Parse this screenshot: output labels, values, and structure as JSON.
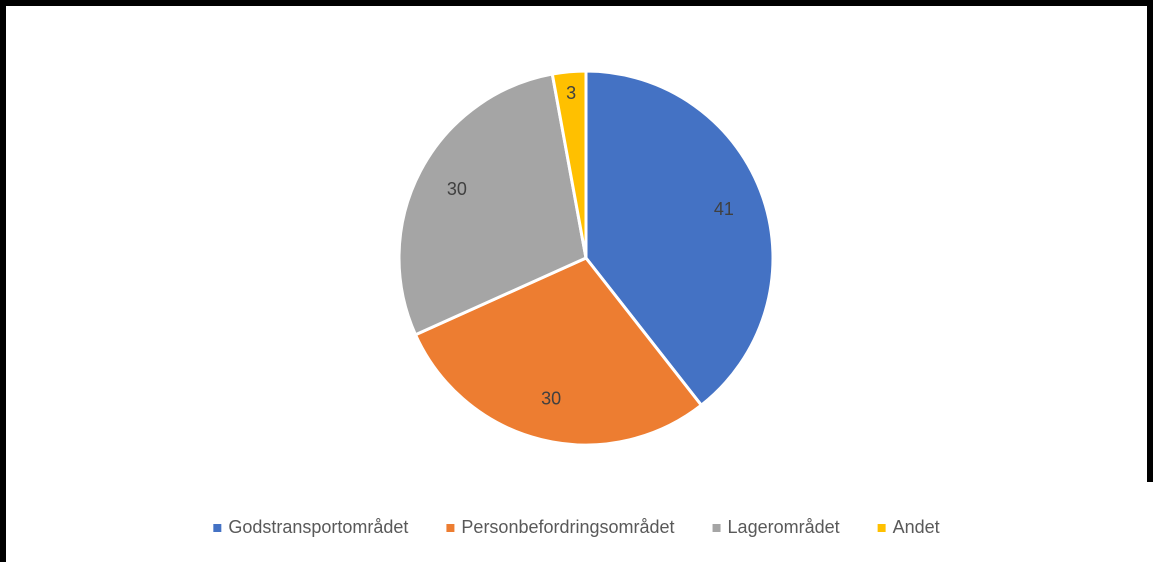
{
  "chart_data": {
    "type": "pie",
    "categories": [
      "Godstransportområdet",
      "Personbefordringsområdet",
      "Lagerområdet",
      "Andet"
    ],
    "values": [
      41,
      30,
      30,
      3
    ],
    "colors": [
      "#4472c4",
      "#ed7d31",
      "#a5a5a5",
      "#ffc000"
    ],
    "legend": "bottom"
  }
}
